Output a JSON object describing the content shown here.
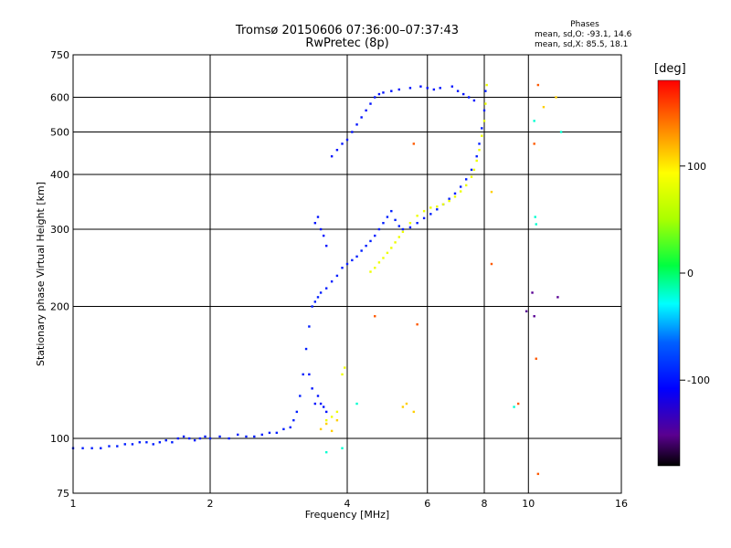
{
  "title": {
    "line1": "Tromsø 20150606 07:36:00–07:37:43",
    "line2": "RwPretec (8p)"
  },
  "stats": {
    "header": "Phases",
    "o_line": "mean, sd,O: -93.1, 14.6",
    "x_line": "mean, sd,X:  85.5, 18.1"
  },
  "colorbar": {
    "unit_label": "[deg]",
    "tick_labels": [
      "100",
      "0",
      "-100"
    ],
    "tick_values": [
      100,
      0,
      -100
    ],
    "range": [
      -180,
      180
    ],
    "colormap": "rainbow",
    "colors": {
      "min": "#000000",
      "low": "#7a00b0",
      "mid_low": "#0030ff",
      "mid": "#00ff80",
      "mid_high": "#ffff00",
      "high": "#ff0000"
    }
  },
  "chart_data": {
    "type": "scatter",
    "title": "Tromsø 20150606 07:36:00–07:37:43 RwPretec (8p)",
    "xlabel": "Frequency [MHz]",
    "ylabel": "Stationary phase Virtual Height [km]",
    "xscale": "log",
    "yscale": "log",
    "xlim": [
      1,
      16
    ],
    "ylim": [
      75,
      750
    ],
    "xticks": [
      1,
      2,
      4,
      6,
      8,
      10,
      16
    ],
    "xtick_labels": [
      "1",
      "2",
      "4",
      "6",
      "8",
      "10",
      "16"
    ],
    "yticks": [
      75,
      100,
      200,
      300,
      400,
      500,
      600,
      750
    ],
    "ytick_labels": [
      "75",
      "100",
      "200",
      "300",
      "400",
      "500",
      "600",
      "750"
    ],
    "grid": true,
    "color_encodes": "phase [deg]",
    "series": [
      {
        "phase": -95,
        "points": [
          [
            1.0,
            95
          ],
          [
            1.05,
            95
          ],
          [
            1.1,
            95
          ],
          [
            1.15,
            95
          ],
          [
            1.2,
            96
          ],
          [
            1.25,
            96
          ],
          [
            1.3,
            97
          ],
          [
            1.35,
            97
          ],
          [
            1.4,
            98
          ],
          [
            1.45,
            98
          ],
          [
            1.5,
            97
          ],
          [
            1.55,
            98
          ],
          [
            1.6,
            99
          ],
          [
            1.65,
            98
          ],
          [
            1.7,
            100
          ],
          [
            1.75,
            101
          ],
          [
            1.8,
            100
          ],
          [
            1.85,
            99
          ],
          [
            1.9,
            100
          ],
          [
            1.95,
            101
          ],
          [
            2.0,
            100
          ],
          [
            2.1,
            101
          ],
          [
            2.2,
            100
          ],
          [
            2.3,
            102
          ],
          [
            2.4,
            101
          ],
          [
            2.5,
            101
          ],
          [
            2.6,
            102
          ],
          [
            2.7,
            103
          ],
          [
            2.8,
            103
          ],
          [
            2.9,
            105
          ],
          [
            3.0,
            106
          ],
          [
            3.05,
            110
          ],
          [
            3.1,
            115
          ],
          [
            3.15,
            125
          ],
          [
            3.2,
            140
          ],
          [
            3.25,
            160
          ],
          [
            3.3,
            180
          ],
          [
            3.35,
            200
          ],
          [
            3.4,
            205
          ],
          [
            3.45,
            210
          ],
          [
            3.5,
            215
          ],
          [
            3.6,
            220
          ],
          [
            3.7,
            228
          ],
          [
            3.8,
            235
          ],
          [
            3.9,
            245
          ],
          [
            4.0,
            250
          ],
          [
            4.1,
            255
          ],
          [
            4.2,
            260
          ],
          [
            4.3,
            268
          ],
          [
            4.4,
            275
          ],
          [
            4.5,
            282
          ],
          [
            4.6,
            290
          ],
          [
            4.7,
            300
          ],
          [
            4.8,
            310
          ],
          [
            4.9,
            320
          ],
          [
            5.0,
            330
          ],
          [
            5.1,
            315
          ],
          [
            5.2,
            305
          ],
          [
            5.3,
            300
          ],
          [
            5.5,
            303
          ],
          [
            5.7,
            310
          ],
          [
            5.9,
            318
          ],
          [
            6.1,
            325
          ],
          [
            6.3,
            333
          ],
          [
            6.5,
            342
          ],
          [
            6.7,
            352
          ],
          [
            6.9,
            362
          ],
          [
            7.1,
            375
          ],
          [
            7.3,
            390
          ],
          [
            7.5,
            410
          ],
          [
            7.7,
            440
          ],
          [
            7.8,
            470
          ],
          [
            7.9,
            510
          ],
          [
            8.0,
            560
          ],
          [
            8.05,
            620
          ]
        ]
      },
      {
        "phase": -100,
        "points": [
          [
            3.4,
            310
          ],
          [
            3.45,
            320
          ],
          [
            3.5,
            300
          ],
          [
            3.55,
            290
          ],
          [
            3.6,
            275
          ],
          [
            3.7,
            440
          ],
          [
            3.8,
            455
          ],
          [
            3.9,
            470
          ],
          [
            4.0,
            480
          ],
          [
            4.1,
            500
          ],
          [
            4.2,
            520
          ],
          [
            4.3,
            540
          ],
          [
            4.4,
            560
          ],
          [
            4.5,
            580
          ],
          [
            4.6,
            600
          ],
          [
            4.7,
            610
          ],
          [
            4.8,
            615
          ],
          [
            5.0,
            620
          ],
          [
            5.2,
            625
          ],
          [
            5.5,
            630
          ],
          [
            5.8,
            635
          ],
          [
            6.0,
            630
          ],
          [
            6.2,
            625
          ],
          [
            6.4,
            630
          ],
          [
            6.8,
            635
          ],
          [
            7.0,
            620
          ],
          [
            7.2,
            610
          ],
          [
            7.4,
            600
          ],
          [
            7.6,
            590
          ],
          [
            3.3,
            140
          ],
          [
            3.35,
            130
          ],
          [
            3.4,
            120
          ],
          [
            3.45,
            125
          ],
          [
            3.5,
            120
          ],
          [
            3.55,
            118
          ],
          [
            3.6,
            115
          ]
        ]
      },
      {
        "phase": 85,
        "points": [
          [
            4.5,
            240
          ],
          [
            4.6,
            245
          ],
          [
            4.7,
            252
          ],
          [
            4.8,
            258
          ],
          [
            4.9,
            265
          ],
          [
            5.0,
            272
          ],
          [
            5.1,
            280
          ],
          [
            5.2,
            288
          ],
          [
            5.3,
            296
          ],
          [
            5.5,
            310
          ],
          [
            5.7,
            322
          ],
          [
            5.9,
            330
          ],
          [
            6.1,
            336
          ],
          [
            6.3,
            338
          ],
          [
            6.5,
            342
          ],
          [
            6.7,
            348
          ],
          [
            6.9,
            356
          ],
          [
            7.1,
            366
          ],
          [
            7.3,
            378
          ],
          [
            7.5,
            395
          ],
          [
            7.6,
            410
          ],
          [
            7.7,
            430
          ],
          [
            7.8,
            455
          ],
          [
            7.9,
            490
          ],
          [
            8.0,
            530
          ],
          [
            8.05,
            580
          ],
          [
            8.1,
            640
          ],
          [
            3.6,
            110
          ],
          [
            3.7,
            112
          ],
          [
            3.8,
            115
          ],
          [
            3.9,
            140
          ],
          [
            3.95,
            145
          ]
        ]
      },
      {
        "phase": 110,
        "points": [
          [
            3.5,
            105
          ],
          [
            3.6,
            108
          ],
          [
            3.7,
            104
          ],
          [
            3.8,
            110
          ],
          [
            5.3,
            118
          ],
          [
            5.4,
            120
          ],
          [
            5.6,
            115
          ],
          [
            8.3,
            365
          ],
          [
            10.8,
            570
          ],
          [
            11.5,
            600
          ]
        ]
      },
      {
        "phase": 150,
        "points": [
          [
            4.6,
            190
          ],
          [
            5.6,
            470
          ],
          [
            5.7,
            182
          ],
          [
            8.3,
            250
          ],
          [
            9.5,
            120
          ],
          [
            10.3,
            470
          ],
          [
            10.4,
            152
          ],
          [
            10.5,
            640
          ],
          [
            10.5,
            83
          ]
        ]
      },
      {
        "phase": -20,
        "points": [
          [
            3.6,
            93
          ],
          [
            3.9,
            95
          ],
          [
            4.2,
            120
          ],
          [
            9.3,
            118
          ],
          [
            10.3,
            530
          ],
          [
            10.35,
            320
          ],
          [
            10.4,
            308
          ],
          [
            11.8,
            500
          ]
        ]
      },
      {
        "phase": -150,
        "points": [
          [
            9.9,
            195
          ],
          [
            10.2,
            215
          ],
          [
            10.3,
            190
          ],
          [
            11.6,
            210
          ]
        ]
      }
    ]
  }
}
